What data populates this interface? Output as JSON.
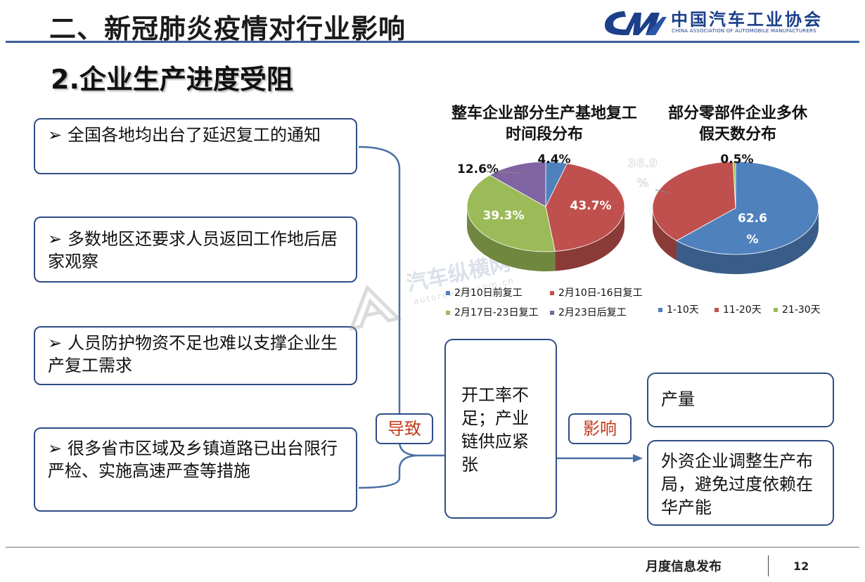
{
  "header": {
    "main_title": "二、新冠肺炎疫情对行业影响",
    "logo_cn": "中国汽车工业协会",
    "logo_en": "CHINA ASSOCIATION OF AUTOMOBILE MANUFACTURERS",
    "section_title": "2.企业生产进度受阻"
  },
  "causes": [
    {
      "bullet": "➢",
      "text": "全国各地均出台了延迟复工的通知"
    },
    {
      "bullet": "➢",
      "text": "多数地区还要求人员返回工作地后居家观察"
    },
    {
      "bullet": "➢",
      "text": "人员防护物资不足也难以支撑企业生产复工需求"
    },
    {
      "bullet": "➢",
      "text": "很多省市区域及乡镇道路已出台限行严检、实施高速严查等措施"
    }
  ],
  "flow": {
    "lead_label": "导致",
    "middle_text": "开工率不足；产业链供应紧张",
    "affect_label": "影响",
    "outcomes": [
      "产量",
      "外资企业调整生产布局，避免过度依赖在华产能"
    ]
  },
  "watermark": {
    "cn": "汽车纵横网",
    "en": "autoreview.com.cn"
  },
  "footer": {
    "label": "月度信息发布",
    "page_number": "12"
  },
  "chart_data": [
    {
      "type": "pie",
      "title": "整车企业部分生产基地复工时间段分布",
      "categories": [
        "2月10日前复工",
        "2月10日-16日复工",
        "2月17日-23日复工",
        "2月23日后复工"
      ],
      "values": [
        4.4,
        43.7,
        39.3,
        12.6
      ],
      "labels": [
        "4.4%",
        "43.7%",
        "39.3%",
        "12.6%"
      ],
      "colors": [
        "#4f81bd",
        "#c0504d",
        "#9bbb59",
        "#8064a2"
      ],
      "legend": "bottom"
    },
    {
      "type": "pie",
      "title": "部分零部件企业多休假天数分布",
      "categories": [
        "1-10天",
        "11-20天",
        "21-30天"
      ],
      "values": [
        62.6,
        36.9,
        0.5
      ],
      "labels": [
        "62.6%",
        "36.9%",
        "0.5%"
      ],
      "colors": [
        "#4f81bd",
        "#c0504d",
        "#9bbb59"
      ],
      "legend": "bottom"
    }
  ]
}
